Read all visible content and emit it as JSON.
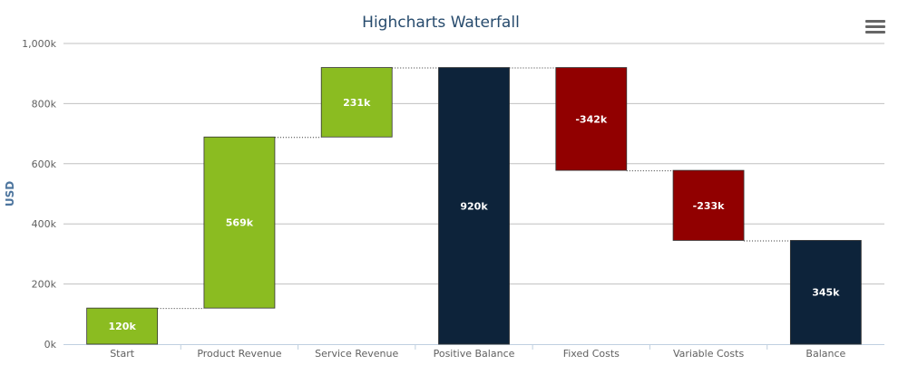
{
  "chart_data": {
    "type": "waterfall",
    "title": "Highcharts Waterfall",
    "ylabel": "USD",
    "xlabel": "",
    "ylim": [
      0,
      1000000
    ],
    "y_ticks": [
      "0k",
      "200k",
      "400k",
      "600k",
      "800k",
      "1,000k"
    ],
    "y_tick_values": [
      0,
      200000,
      400000,
      600000,
      800000,
      1000000
    ],
    "grid": true,
    "legend": "none",
    "categories": [
      "Start",
      "Product Revenue",
      "Service Revenue",
      "Positive Balance",
      "Fixed Costs",
      "Variable Costs",
      "Balance"
    ],
    "values": [
      120000,
      569000,
      231000,
      920000,
      -342000,
      -233000,
      345000
    ],
    "kinds": [
      "delta",
      "delta",
      "delta",
      "sum",
      "delta",
      "delta",
      "sum"
    ],
    "data_labels": [
      "120k",
      "569k",
      "231k",
      "920k",
      "-342k",
      "-233k",
      "345k"
    ],
    "colors": {
      "up": "#8bbc21",
      "down": "#910000",
      "sum": "#0d233a",
      "grid": "#c0c0c0",
      "axis_text": "#606060",
      "title": "#274b6d"
    }
  },
  "menu": {
    "icon": "hamburger-menu-icon"
  }
}
